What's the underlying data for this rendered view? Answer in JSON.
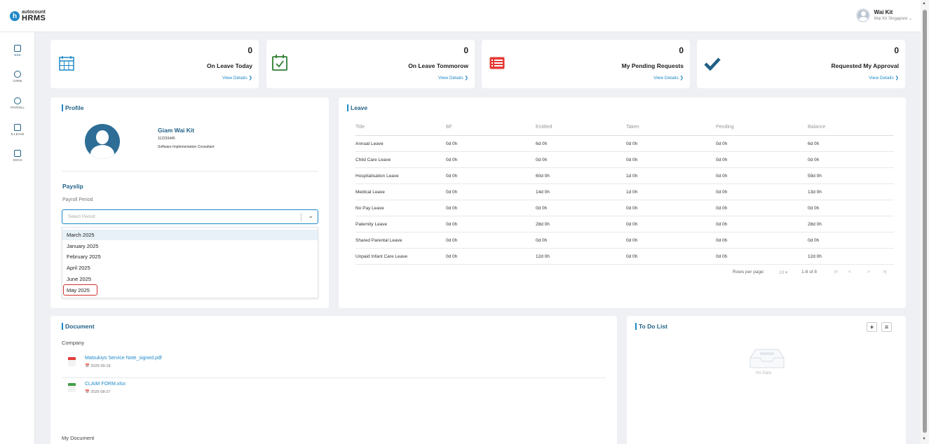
{
  "header": {
    "logo_top": "autocount",
    "logo_main": "HRMS",
    "logo_letter": "h",
    "user_name": "Wai Kit",
    "user_company": "Wai Kit Singapore ⌄"
  },
  "sidebar": {
    "items": [
      {
        "label": "ESS"
      },
      {
        "label": "CORE"
      },
      {
        "label": "PAYROLL"
      },
      {
        "label": "E-LEAVE"
      },
      {
        "label": "DOCS"
      }
    ]
  },
  "stats": [
    {
      "count": "0",
      "label": "On Leave Today",
      "link": "View Details ❯",
      "icon": "calendar-grid-icon"
    },
    {
      "count": "0",
      "label": "On Leave Tommorow",
      "link": "View Details ❯",
      "icon": "calendar-check-icon"
    },
    {
      "count": "0",
      "label": "My Pending Requests",
      "link": "View Details ❯",
      "icon": "list-icon"
    },
    {
      "count": "0",
      "label": "Requested My Approval",
      "link": "View Details ❯",
      "icon": "checkmark-icon"
    }
  ],
  "profile": {
    "title": "Profile",
    "name": "Giam Wai Kit",
    "id": "112233445",
    "job_title": "Software Implementation Consultant"
  },
  "payslip": {
    "title": "Payslip",
    "period_label": "Payroll Period",
    "placeholder": "Select Period",
    "options": [
      "March 2025",
      "January 2025",
      "February 2025",
      "April 2025",
      "June 2025",
      "May 2025"
    ],
    "highlighted": "May 2025"
  },
  "leave": {
    "title": "Leave",
    "columns": [
      "Title",
      "BF",
      "Entitled",
      "Taken",
      "Pending",
      "Balance"
    ],
    "rows": [
      [
        "Annual Leave",
        "0d 0h",
        "6d 0h",
        "0d 0h",
        "0d 0h",
        "6d 0h"
      ],
      [
        "Child Care Leave",
        "0d 0h",
        "0d 0h",
        "0d 0h",
        "0d 0h",
        "0d 0h"
      ],
      [
        "Hospitalisation Leave",
        "0d 0h",
        "60d 0h",
        "1d 0h",
        "0d 0h",
        "59d 0h"
      ],
      [
        "Medical Leave",
        "0d 0h",
        "14d 0h",
        "1d 0h",
        "0d 0h",
        "13d 0h"
      ],
      [
        "No Pay Leave",
        "0d 0h",
        "0d 0h",
        "0d 0h",
        "0d 0h",
        "0d 0h"
      ],
      [
        "Paternity Leave",
        "0d 0h",
        "28d 0h",
        "0d 0h",
        "0d 0h",
        "28d 0h"
      ],
      [
        "Shared Parental Leave",
        "0d 0h",
        "0d 0h",
        "0d 0h",
        "0d 0h",
        "0d 0h"
      ],
      [
        "Unpaid Infant Care Leave",
        "0d 0h",
        "12d 0h",
        "0d 0h",
        "0d 0h",
        "12d 0h"
      ]
    ],
    "rows_per_page_label": "Rows per page:",
    "rows_per_page": "10 ▾",
    "range": "1-8 of 8",
    "pager_first": "|<",
    "pager_prev": "<",
    "pager_next": ">",
    "pager_last": ">|"
  },
  "document": {
    "title": "Document",
    "company_label": "Company",
    "files": [
      {
        "name": "Matsukiyo Service Note_signed.pdf",
        "date": "📅 2025-09-18",
        "type": "pdf"
      },
      {
        "name": "CLAIM FORM.xlsx",
        "date": "📅 2025-08-27",
        "type": "xlsx"
      }
    ],
    "my_document_label": "My Document"
  },
  "todo": {
    "title": "To Do List",
    "add": "+",
    "list": "≡",
    "empty": "No Data"
  },
  "colors": {
    "accent": "#1e88c7",
    "dark_accent": "#1e5f85",
    "pdf_red": "#e53935",
    "xlsx_green": "#43a047",
    "highlight_red": "#d32f2f"
  }
}
